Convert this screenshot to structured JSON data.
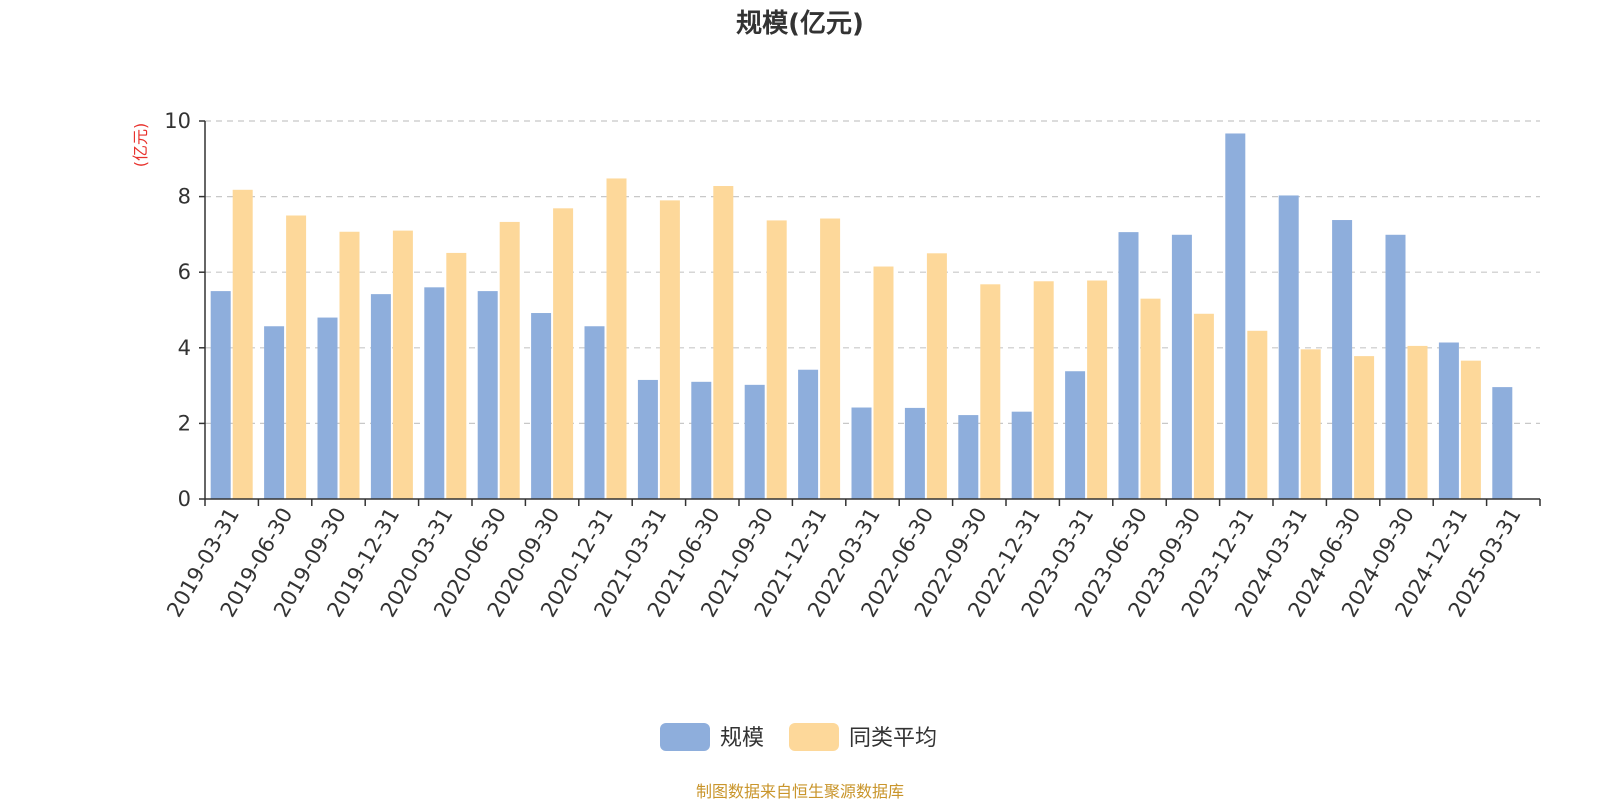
{
  "chart_data": {
    "type": "bar",
    "title": "规模(亿元)",
    "ylabel": "(亿元)",
    "ylim": [
      0,
      10
    ],
    "yticks": [
      0,
      2,
      4,
      6,
      8,
      10
    ],
    "grid": true,
    "legend_position": "bottom",
    "categories": [
      "2019-03-31",
      "2019-06-30",
      "2019-09-30",
      "2019-12-31",
      "2020-03-31",
      "2020-06-30",
      "2020-09-30",
      "2020-12-31",
      "2021-03-31",
      "2021-06-30",
      "2021-09-30",
      "2021-12-31",
      "2022-03-31",
      "2022-06-30",
      "2022-09-30",
      "2022-12-31",
      "2023-03-31",
      "2023-06-30",
      "2023-09-30",
      "2023-12-31",
      "2024-03-31",
      "2024-06-30",
      "2024-09-30",
      "2024-12-31",
      "2025-03-31"
    ],
    "series": [
      {
        "name": "规模",
        "color": "#8eaedc",
        "values": [
          5.5,
          4.57,
          4.8,
          5.42,
          5.6,
          5.5,
          4.92,
          4.57,
          3.15,
          3.1,
          3.02,
          3.42,
          2.42,
          2.41,
          2.22,
          2.31,
          3.38,
          7.06,
          6.99,
          9.67,
          8.03,
          7.38,
          6.99,
          4.14,
          2.96
        ]
      },
      {
        "name": "同类平均",
        "color": "#fdd89a",
        "values": [
          8.18,
          7.5,
          7.07,
          7.1,
          6.51,
          7.33,
          7.69,
          8.48,
          7.9,
          8.28,
          7.37,
          7.42,
          6.15,
          6.5,
          5.68,
          5.76,
          5.78,
          5.3,
          4.9,
          4.45,
          3.96,
          3.78,
          4.05,
          3.66,
          null
        ]
      }
    ]
  },
  "source_note": "制图数据来自恒生聚源数据库",
  "colors": {
    "axis": "#333333",
    "grid": "#c8c8c8",
    "ylabel": "#e8322d",
    "source": "#c9952b"
  }
}
